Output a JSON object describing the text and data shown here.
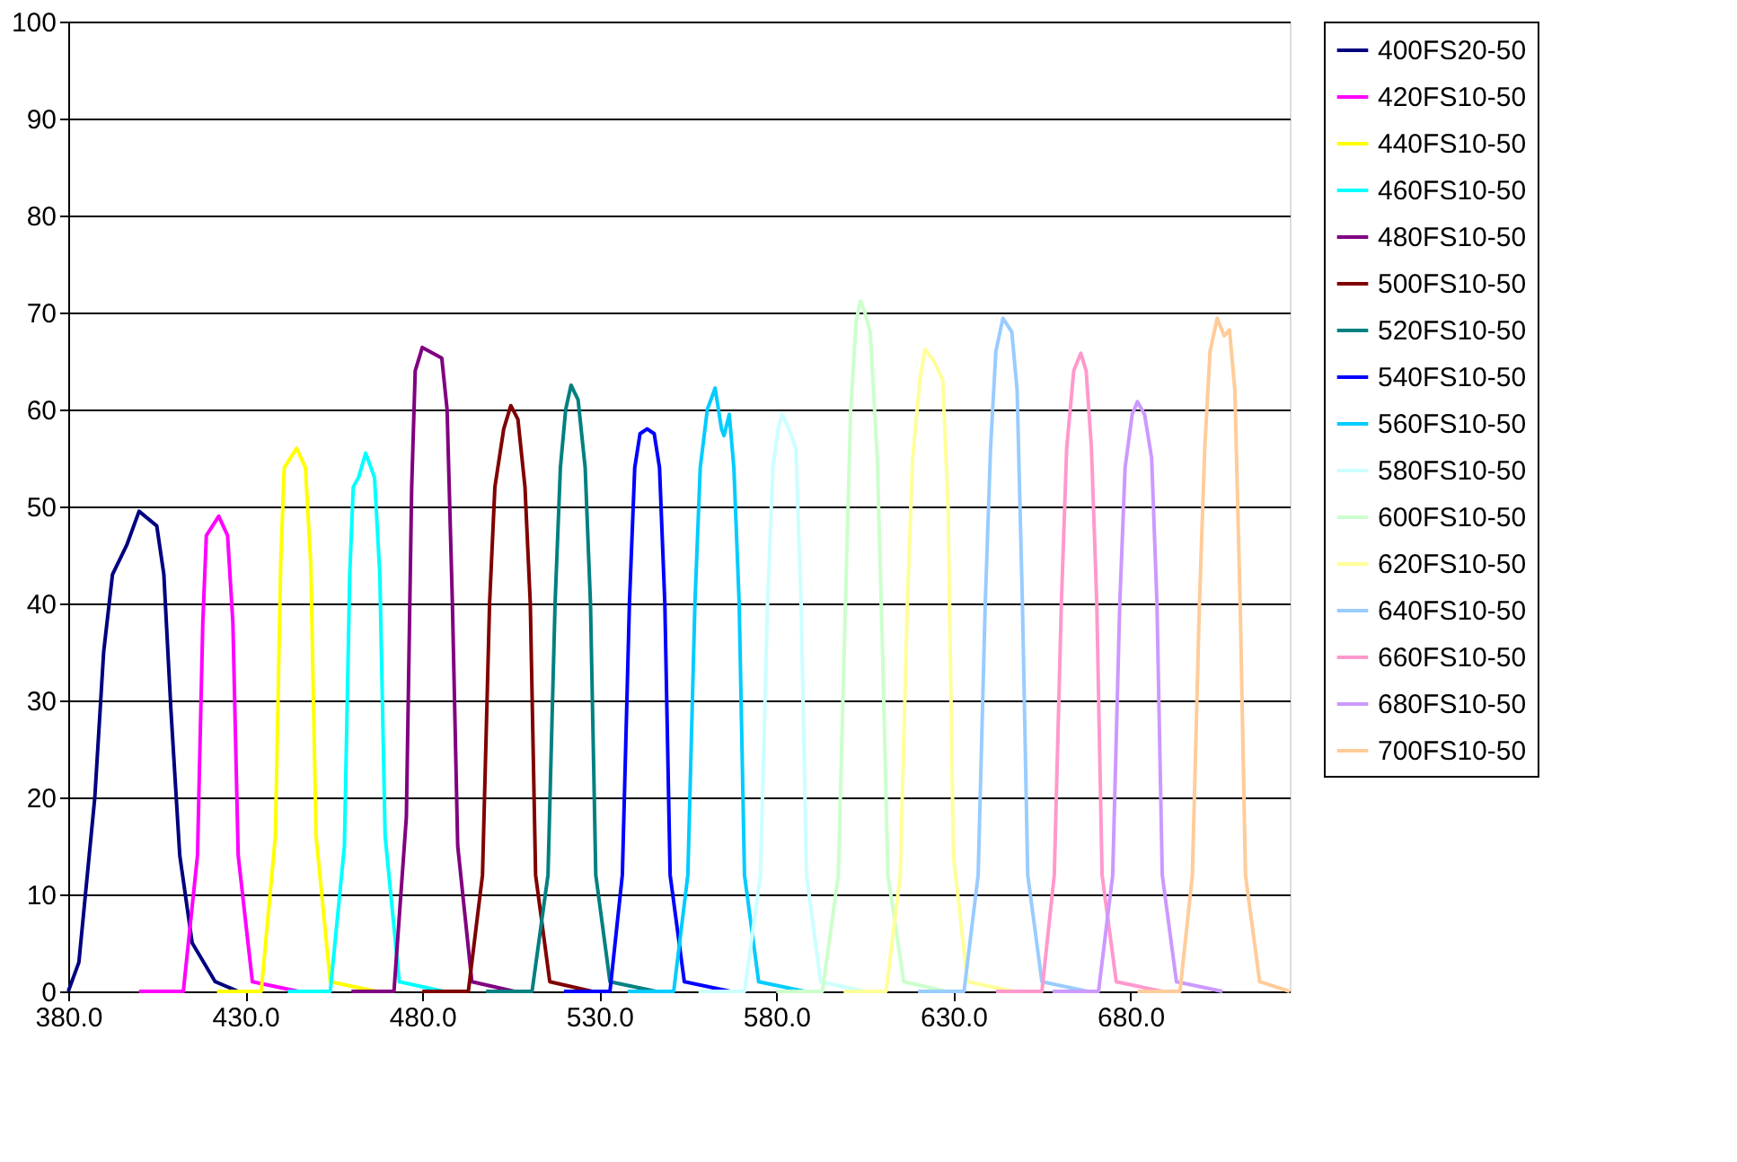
{
  "chart_data": {
    "type": "line",
    "xlim": [
      380,
      725
    ],
    "ylim": [
      0,
      100
    ],
    "xticks": [
      {
        "value": 380,
        "label": "380.0"
      },
      {
        "value": 430,
        "label": "430.0"
      },
      {
        "value": 480,
        "label": "480.0"
      },
      {
        "value": 530,
        "label": "530.0"
      },
      {
        "value": 580,
        "label": "580.0"
      },
      {
        "value": 630,
        "label": "630.0"
      },
      {
        "value": 680,
        "label": "680.0"
      }
    ],
    "yticks": [
      0,
      10,
      20,
      30,
      40,
      50,
      60,
      70,
      80,
      90,
      100
    ],
    "grid": "y",
    "legend": "right",
    "series": [
      {
        "name": "400FS20-50",
        "color": "#000080",
        "x": [
          380,
          383,
          387.5,
          390,
          392.5,
          396.5,
          400,
          405,
          407,
          409,
          411.5,
          415,
          421.5,
          428
        ],
        "values": [
          0,
          3,
          20,
          35,
          43,
          46,
          49.5,
          48,
          43,
          29,
          14,
          5,
          1,
          0
        ]
      },
      {
        "name": "420FS10-50",
        "color": "#ff00ff",
        "x": [
          400,
          412.5,
          416.5,
          418,
          419,
          422.5,
          425,
          426.5,
          428,
          432,
          445
        ],
        "values": [
          0,
          0,
          14,
          38,
          47,
          49,
          47,
          38,
          14,
          1,
          0
        ]
      },
      {
        "name": "440FS10-50",
        "color": "#ffff00",
        "x": [
          422,
          434.5,
          438.5,
          440,
          441,
          444.5,
          447,
          448.5,
          450,
          454,
          467
        ],
        "values": [
          0,
          0,
          16,
          44,
          54,
          56,
          54,
          44,
          16,
          1,
          0
        ]
      },
      {
        "name": "460FS10-50",
        "color": "#00ffff",
        "x": [
          442,
          454,
          458,
          459.5,
          460.5,
          462,
          464,
          466.5,
          468,
          469.5,
          473.5,
          486
        ],
        "values": [
          0,
          0,
          15,
          43,
          52,
          53,
          55.5,
          53,
          43,
          16,
          1,
          0
        ]
      },
      {
        "name": "480FS10-50",
        "color": "#800080",
        "x": [
          460,
          472,
          475.5,
          477,
          478,
          480,
          482,
          485.5,
          487,
          488.5,
          490,
          494,
          506
        ],
        "values": [
          0,
          0,
          18,
          52,
          64,
          66.4,
          66,
          65.3,
          60,
          40,
          15,
          1,
          0
        ]
      },
      {
        "name": "500FS10-50",
        "color": "#800000",
        "x": [
          480,
          493,
          497,
          499,
          500.5,
          503,
          505,
          507,
          509,
          510.5,
          512,
          516,
          528
        ],
        "values": [
          0,
          0,
          12,
          40,
          52,
          58,
          60.4,
          59,
          52,
          40,
          12,
          1,
          0
        ]
      },
      {
        "name": "520FS10-50",
        "color": "#008080",
        "x": [
          498,
          511,
          515.5,
          517.5,
          519,
          520.5,
          522,
          524,
          526,
          527.5,
          529,
          533,
          546
        ],
        "values": [
          0,
          0,
          12,
          40,
          54,
          60,
          62.5,
          61,
          54,
          40,
          12,
          1,
          0
        ]
      },
      {
        "name": "540FS10-50",
        "color": "#0000ff",
        "x": [
          520,
          533,
          536.5,
          538.5,
          540,
          541.5,
          543.5,
          545.5,
          547,
          548.5,
          550,
          554,
          567
        ],
        "values": [
          0,
          0,
          12,
          40,
          54,
          57.5,
          58,
          57.5,
          54,
          40,
          12,
          1,
          0
        ]
      },
      {
        "name": "560FS10-50",
        "color": "#00ccff",
        "x": [
          538,
          551,
          555,
          557,
          558.5,
          560.5,
          562.7,
          564.5,
          565.2,
          566.7,
          568,
          569.5,
          571,
          575,
          588
        ],
        "values": [
          0,
          0,
          12,
          40,
          54,
          60,
          62.2,
          58,
          57.3,
          59.5,
          54,
          40,
          12,
          1,
          0
        ]
      },
      {
        "name": "580FS10-50",
        "color": "#ccffff",
        "x": [
          558,
          571,
          575.5,
          577.5,
          579,
          580.5,
          581.7,
          583.5,
          585.5,
          587,
          588.5,
          592.5,
          605
        ],
        "values": [
          0,
          0,
          12,
          40,
          54,
          58,
          59.5,
          58,
          56,
          40,
          12,
          1,
          0
        ]
      },
      {
        "name": "600FS10-50",
        "color": "#ccffcc",
        "x": [
          580,
          593,
          597.5,
          599.5,
          601,
          602.5,
          603.7,
          605,
          606.5,
          608.5,
          610,
          611.5,
          616,
          628
        ],
        "values": [
          0,
          0,
          12,
          40,
          60,
          69,
          71.2,
          70,
          68,
          55,
          35,
          12,
          1,
          0
        ]
      },
      {
        "name": "620FS10-50",
        "color": "#ffff99",
        "x": [
          599,
          611,
          615,
          617,
          618.5,
          620.5,
          622,
          624.5,
          627,
          628.5,
          630,
          634,
          647
        ],
        "values": [
          0,
          0,
          12,
          40,
          55,
          63,
          66.2,
          65,
          63,
          50,
          14,
          1,
          0
        ]
      },
      {
        "name": "640FS10-50",
        "color": "#99ccff",
        "x": [
          620,
          633,
          637,
          639,
          640.5,
          642,
          644,
          646.5,
          648,
          649.5,
          651,
          655,
          668
        ],
        "values": [
          0,
          0,
          12,
          40,
          56,
          66,
          69.4,
          68,
          62,
          40,
          12,
          1,
          0
        ]
      },
      {
        "name": "660FS10-50",
        "color": "#ff99cc",
        "x": [
          642,
          655,
          658.5,
          660.5,
          662,
          664,
          666,
          667.5,
          669,
          670.5,
          672,
          676,
          689
        ],
        "values": [
          0,
          0,
          12,
          40,
          56,
          64,
          65.8,
          64,
          56,
          40,
          12,
          1,
          0
        ]
      },
      {
        "name": "680FS10-50",
        "color": "#cc99ff",
        "x": [
          658,
          671,
          675,
          677,
          678.5,
          680.5,
          682,
          684,
          686,
          687.5,
          689,
          693,
          706
        ],
        "values": [
          0,
          0,
          12,
          40,
          54,
          59.5,
          60.8,
          59.5,
          55,
          40,
          12,
          1,
          0
        ]
      },
      {
        "name": "700FS10-50",
        "color": "#ffcc99",
        "x": [
          682,
          694,
          697.5,
          699.5,
          701,
          702.5,
          704.5,
          706.5,
          708,
          709.5,
          711,
          712.5,
          716.5,
          725
        ],
        "values": [
          0,
          0,
          12,
          40,
          56,
          66,
          69.4,
          67.6,
          68.2,
          62,
          40,
          12,
          1,
          0
        ]
      }
    ]
  }
}
